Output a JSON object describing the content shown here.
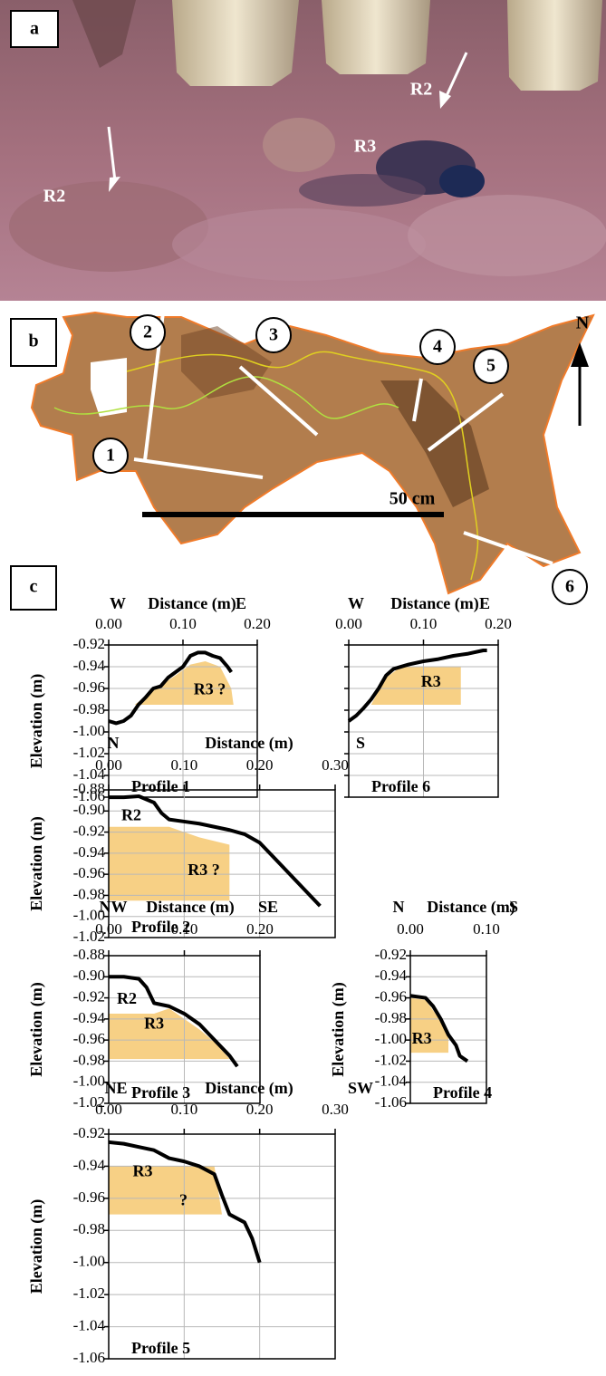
{
  "panels": {
    "a": "a",
    "b": "b",
    "c": "c"
  },
  "photo_labels": [
    "R2",
    "R3",
    "R2"
  ],
  "map": {
    "profile_numbers": [
      "1",
      "2",
      "3",
      "4",
      "5",
      "6"
    ],
    "scale_bar": "50 cm",
    "north": "N"
  },
  "chart_data": [
    {
      "type": "line",
      "title": "Profile 1",
      "x_label": "Distance (m)",
      "y_label": "Elevation (m)",
      "dir_left": "W",
      "dir_right": "E",
      "x": [
        0,
        0.01,
        0.02,
        0.03,
        0.04,
        0.05,
        0.06,
        0.07,
        0.08,
        0.09,
        0.1,
        0.11,
        0.12,
        0.13,
        0.14,
        0.15,
        0.16,
        0.165
      ],
      "values": [
        -0.99,
        -0.992,
        -0.99,
        -0.985,
        -0.975,
        -0.968,
        -0.96,
        -0.958,
        -0.95,
        -0.945,
        -0.94,
        -0.93,
        -0.927,
        -0.927,
        -0.93,
        -0.932,
        -0.94,
        -0.945
      ],
      "color": "#000000",
      "shade": {
        "label": "R3 ?",
        "color": "#f6c870",
        "x": [
          0.035,
          0.06,
          0.09,
          0.11,
          0.13,
          0.15,
          0.165,
          0.168
        ],
        "y": [
          -0.975,
          -0.962,
          -0.948,
          -0.938,
          -0.935,
          -0.94,
          -0.96,
          -0.975
        ]
      },
      "annotations": [],
      "xlim": [
        0,
        0.2
      ],
      "ylim": [
        -1.06,
        -0.92
      ],
      "xticks": [
        {
          "value": 0,
          "label": "0.00"
        },
        {
          "value": 0.1,
          "label": "0.10"
        },
        {
          "value": 0.2,
          "label": "0.20"
        }
      ],
      "yticks": [
        -0.92,
        -0.94,
        -0.96,
        -0.98,
        {
          "value": -1,
          "label": "-1.00"
        },
        -1.02,
        -1.04,
        -1.06
      ],
      "show_ytick_labels": true,
      "grid": true
    },
    {
      "type": "line",
      "title": "Profile 6",
      "x_label": "Distance (m)",
      "dir_left": "W",
      "dir_right": "E",
      "x": [
        0,
        0.01,
        0.02,
        0.03,
        0.04,
        0.05,
        0.06,
        0.08,
        0.1,
        0.12,
        0.14,
        0.16,
        0.18,
        0.185
      ],
      "values": [
        -0.99,
        -0.985,
        -0.978,
        -0.97,
        -0.96,
        -0.948,
        -0.942,
        -0.938,
        -0.935,
        -0.933,
        -0.93,
        -0.928,
        -0.925,
        -0.925
      ],
      "color": "#000000",
      "shade": {
        "label": "R3",
        "color": "#f6c870",
        "x": [
          0.03,
          0.04,
          0.05,
          0.07,
          0.15,
          0.15
        ],
        "y": [
          -0.975,
          -0.962,
          -0.95,
          -0.94,
          -0.94,
          -0.975
        ]
      },
      "annotations": [],
      "xlim": [
        0,
        0.2
      ],
      "ylim": [
        -1.06,
        -0.92
      ],
      "xticks": [
        {
          "value": 0,
          "label": "0.00"
        },
        {
          "value": 0.1,
          "label": "0.10"
        },
        {
          "value": 0.2,
          "label": "0.20"
        }
      ],
      "yticks": [
        -0.92,
        -0.94,
        -0.96,
        -0.98,
        -1,
        -1.02,
        -1.04,
        -1.06
      ],
      "show_ytick_labels": false,
      "grid": true
    },
    {
      "type": "line",
      "title": "Profile 2",
      "x_label": "Distance (m)",
      "y_label": "Elevation (m)",
      "dir_left": "N",
      "dir_right": "S",
      "x": [
        0,
        0.02,
        0.04,
        0.06,
        0.07,
        0.08,
        0.1,
        0.12,
        0.14,
        0.16,
        0.18,
        0.2,
        0.22,
        0.24,
        0.26,
        0.28
      ],
      "values": [
        -0.887,
        -0.887,
        -0.886,
        -0.892,
        -0.902,
        -0.908,
        -0.91,
        -0.912,
        -0.915,
        -0.918,
        -0.922,
        -0.93,
        -0.945,
        -0.96,
        -0.975,
        -0.99
      ],
      "color": "#000000",
      "shade": {
        "label": "R3 ?",
        "color": "#f6c870",
        "x": [
          0,
          0.08,
          0.12,
          0.16,
          0.16,
          0
        ],
        "y": [
          -0.915,
          -0.915,
          -0.925,
          -0.932,
          -0.985,
          -0.985
        ]
      },
      "annotations": [
        "R2"
      ],
      "xlim": [
        0,
        0.3
      ],
      "ylim": [
        -1.02,
        -0.88
      ],
      "xticks": [
        {
          "value": 0,
          "label": "0.00"
        },
        {
          "value": 0.1,
          "label": "0.10"
        },
        {
          "value": 0.2,
          "label": "0.20"
        },
        {
          "value": 0.3,
          "label": "0.30"
        }
      ],
      "yticks": [
        -0.88,
        {
          "value": -0.9,
          "label": "-0.90"
        },
        -0.92,
        -0.94,
        -0.96,
        -0.98,
        {
          "value": -1,
          "label": "-1.00"
        },
        -1.02
      ],
      "show_ytick_labels": true,
      "grid": true
    },
    {
      "type": "line",
      "title": "Profile 3",
      "x_label": "Distance (m)",
      "y_label": "Elevation (m)",
      "dir_left": "NW",
      "dir_right": "SE",
      "x": [
        0,
        0.02,
        0.04,
        0.05,
        0.06,
        0.08,
        0.1,
        0.12,
        0.14,
        0.16,
        0.17
      ],
      "values": [
        -0.9,
        -0.9,
        -0.902,
        -0.91,
        -0.925,
        -0.928,
        -0.935,
        -0.945,
        -0.96,
        -0.975,
        -0.985
      ],
      "color": "#000000",
      "shade": {
        "label": "R3",
        "color": "#f6c870",
        "x": [
          0,
          0.06,
          0.08,
          0.1,
          0.12,
          0.14,
          0.16,
          0
        ],
        "y": [
          -0.935,
          -0.935,
          -0.93,
          -0.94,
          -0.95,
          -0.962,
          -0.978,
          -0.978
        ]
      },
      "annotations": [
        "R2"
      ],
      "xlim": [
        0,
        0.2
      ],
      "ylim": [
        -1.02,
        -0.88
      ],
      "xticks": [
        {
          "value": 0,
          "label": "0.00"
        },
        {
          "value": 0.1,
          "label": "0.10"
        },
        {
          "value": 0.2,
          "label": "0.20"
        }
      ],
      "yticks": [
        -0.88,
        {
          "value": -0.9,
          "label": "-0.90"
        },
        -0.92,
        -0.94,
        -0.96,
        -0.98,
        {
          "value": -1,
          "label": "-1.00"
        },
        -1.02
      ],
      "show_ytick_labels": true,
      "grid": true
    },
    {
      "type": "line",
      "title": "Profile 4",
      "x_label": "Distance (m)",
      "y_label": "Elevation (m)",
      "dir_left": "N",
      "dir_right": "S",
      "x": [
        0,
        0.02,
        0.03,
        0.04,
        0.05,
        0.06,
        0.065,
        0.075
      ],
      "values": [
        -0.958,
        -0.96,
        -0.968,
        -0.98,
        -0.995,
        -1.005,
        -1.015,
        -1.02
      ],
      "color": "#000000",
      "shade": {
        "label": "R3",
        "color": "#f6c870",
        "x": [
          0,
          0.02,
          0.04,
          0.05,
          0.05,
          0
        ],
        "y": [
          -0.96,
          -0.962,
          -0.982,
          -0.995,
          -1.012,
          -1.012
        ]
      },
      "annotations": [],
      "xlim": [
        0,
        0.1
      ],
      "ylim": [
        -1.06,
        -0.92
      ],
      "xticks": [
        {
          "value": 0,
          "label": "0.00"
        },
        {
          "value": 0.1,
          "label": "0.10"
        }
      ],
      "yticks": [
        -0.92,
        -0.94,
        -0.96,
        -0.98,
        {
          "value": -1,
          "label": "-1.00"
        },
        -1.02,
        -1.04,
        -1.06
      ],
      "show_ytick_labels": true,
      "grid": true
    },
    {
      "type": "line",
      "title": "Profile 5",
      "x_label": "Distance (m)",
      "y_label": "Elevation (m)",
      "dir_left": "NE",
      "dir_right": "SW",
      "x": [
        0,
        0.02,
        0.04,
        0.06,
        0.08,
        0.1,
        0.12,
        0.14,
        0.15,
        0.16,
        0.18,
        0.19,
        0.2
      ],
      "values": [
        -0.925,
        -0.926,
        -0.928,
        -0.93,
        -0.935,
        -0.937,
        -0.94,
        -0.945,
        -0.958,
        -0.97,
        -0.975,
        -0.985,
        -1
      ],
      "color": "#000000",
      "shade": {
        "label": "R3",
        "color": "#f6c870",
        "x": [
          0,
          0.14,
          0.15,
          0
        ],
        "y": [
          -0.94,
          -0.94,
          -0.97,
          -0.97
        ]
      },
      "annotations": [
        "?"
      ],
      "xlim": [
        0,
        0.3
      ],
      "ylim": [
        -1.06,
        -0.92
      ],
      "xticks": [
        {
          "value": 0,
          "label": "0.00"
        },
        {
          "value": 0.1,
          "label": "0.10"
        },
        {
          "value": 0.2,
          "label": "0.20"
        },
        {
          "value": 0.3,
          "label": "0.30"
        }
      ],
      "yticks": [
        -0.92,
        -0.94,
        -0.96,
        -0.98,
        {
          "value": -1,
          "label": "-1.00"
        },
        -1.02,
        -1.04,
        -1.06
      ],
      "show_ytick_labels": true,
      "grid": true
    }
  ]
}
